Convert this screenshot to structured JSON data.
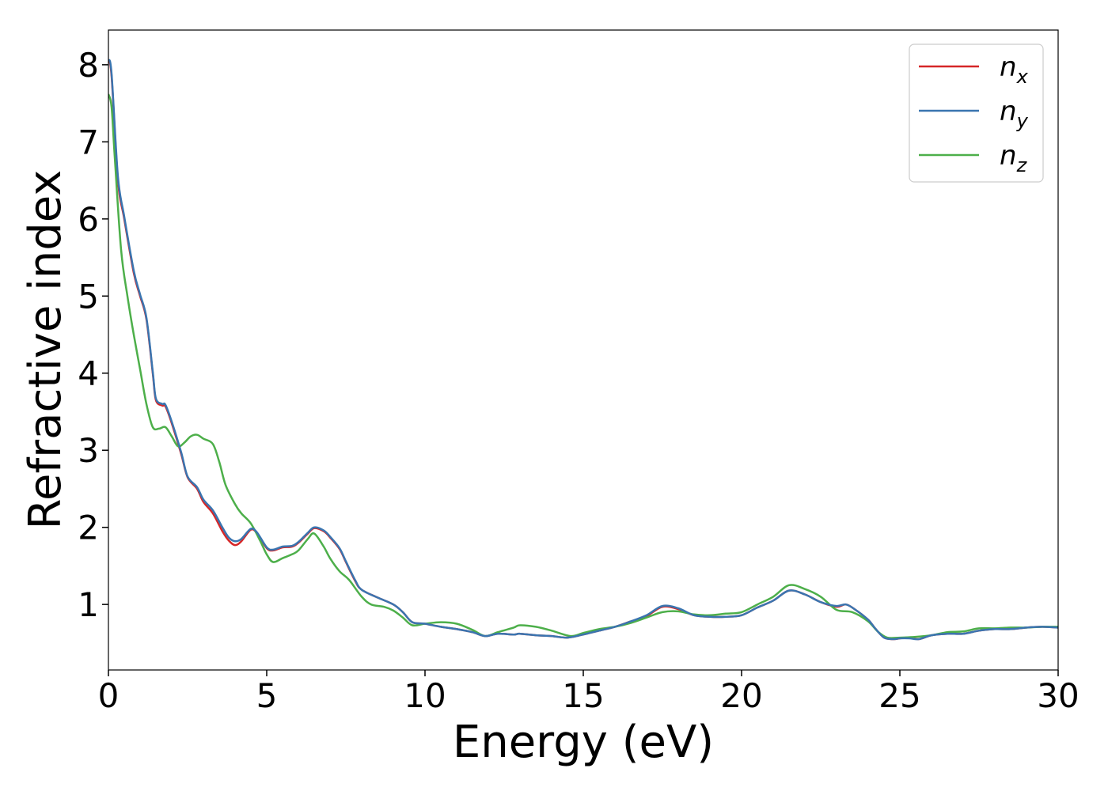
{
  "chart_data": {
    "type": "line",
    "xlabel": "Energy (eV)",
    "ylabel": "Refractive index",
    "xlim": [
      0,
      30
    ],
    "ylim": [
      0.15,
      8.45
    ],
    "x_ticks": [
      0,
      5,
      10,
      15,
      20,
      25,
      30
    ],
    "y_ticks": [
      1,
      2,
      3,
      4,
      5,
      6,
      7,
      8
    ],
    "grid": false,
    "legend_position": "top-right",
    "series": [
      {
        "name": "n",
        "subscript": "x",
        "color": "#d62728",
        "points": [
          [
            0,
            8.05
          ],
          [
            0.1,
            7.85
          ],
          [
            0.3,
            6.5
          ],
          [
            0.5,
            6.0
          ],
          [
            0.8,
            5.3
          ],
          [
            1.0,
            5.0
          ],
          [
            1.2,
            4.7
          ],
          [
            1.4,
            4.0
          ],
          [
            1.5,
            3.65
          ],
          [
            1.7,
            3.58
          ],
          [
            1.8,
            3.57
          ],
          [
            2.0,
            3.35
          ],
          [
            2.3,
            2.95
          ],
          [
            2.5,
            2.65
          ],
          [
            2.8,
            2.5
          ],
          [
            3.0,
            2.33
          ],
          [
            3.3,
            2.18
          ],
          [
            3.6,
            1.95
          ],
          [
            3.8,
            1.83
          ],
          [
            4.0,
            1.77
          ],
          [
            4.2,
            1.82
          ],
          [
            4.5,
            1.97
          ],
          [
            4.7,
            1.92
          ],
          [
            5.0,
            1.73
          ],
          [
            5.2,
            1.7
          ],
          [
            5.5,
            1.74
          ],
          [
            5.8,
            1.75
          ],
          [
            6.0,
            1.8
          ],
          [
            6.3,
            1.92
          ],
          [
            6.5,
            1.99
          ],
          [
            6.8,
            1.95
          ],
          [
            7.0,
            1.87
          ],
          [
            7.3,
            1.72
          ],
          [
            7.5,
            1.55
          ],
          [
            7.8,
            1.3
          ],
          [
            8.0,
            1.19
          ],
          [
            8.5,
            1.09
          ],
          [
            9.0,
            1.0
          ],
          [
            9.3,
            0.9
          ],
          [
            9.6,
            0.77
          ],
          [
            10.0,
            0.75
          ],
          [
            10.5,
            0.71
          ],
          [
            11.0,
            0.68
          ],
          [
            11.5,
            0.64
          ],
          [
            11.9,
            0.59
          ],
          [
            12.3,
            0.62
          ],
          [
            12.8,
            0.61
          ],
          [
            13.0,
            0.62
          ],
          [
            13.5,
            0.6
          ],
          [
            14.0,
            0.59
          ],
          [
            14.5,
            0.57
          ],
          [
            15.0,
            0.61
          ],
          [
            15.5,
            0.66
          ],
          [
            16.0,
            0.71
          ],
          [
            16.5,
            0.78
          ],
          [
            17.0,
            0.85
          ],
          [
            17.5,
            0.97
          ],
          [
            18.0,
            0.94
          ],
          [
            18.5,
            0.86
          ],
          [
            19.0,
            0.84
          ],
          [
            19.5,
            0.84
          ],
          [
            20.0,
            0.86
          ],
          [
            20.5,
            0.96
          ],
          [
            21.0,
            1.05
          ],
          [
            21.5,
            1.18
          ],
          [
            22.0,
            1.13
          ],
          [
            22.5,
            1.03
          ],
          [
            23.0,
            0.97
          ],
          [
            23.3,
            1.0
          ],
          [
            23.6,
            0.93
          ],
          [
            24.0,
            0.8
          ],
          [
            24.2,
            0.7
          ],
          [
            24.5,
            0.57
          ],
          [
            24.8,
            0.55
          ],
          [
            25.0,
            0.56
          ],
          [
            25.3,
            0.57
          ],
          [
            25.6,
            0.55
          ],
          [
            26.0,
            0.6
          ],
          [
            26.5,
            0.62
          ],
          [
            27.0,
            0.62
          ],
          [
            27.5,
            0.66
          ],
          [
            28.0,
            0.68
          ],
          [
            28.5,
            0.68
          ],
          [
            29.0,
            0.7
          ],
          [
            29.5,
            0.71
          ],
          [
            30.0,
            0.7
          ]
        ]
      },
      {
        "name": "n",
        "subscript": "y",
        "color": "#3a75b0",
        "points": [
          [
            0,
            8.07
          ],
          [
            0.1,
            7.88
          ],
          [
            0.3,
            6.55
          ],
          [
            0.5,
            6.03
          ],
          [
            0.8,
            5.33
          ],
          [
            1.0,
            5.02
          ],
          [
            1.2,
            4.72
          ],
          [
            1.4,
            4.02
          ],
          [
            1.5,
            3.67
          ],
          [
            1.7,
            3.6
          ],
          [
            1.8,
            3.59
          ],
          [
            2.0,
            3.37
          ],
          [
            2.3,
            2.97
          ],
          [
            2.5,
            2.66
          ],
          [
            2.8,
            2.52
          ],
          [
            3.0,
            2.36
          ],
          [
            3.3,
            2.22
          ],
          [
            3.6,
            2.0
          ],
          [
            3.8,
            1.87
          ],
          [
            4.0,
            1.82
          ],
          [
            4.2,
            1.85
          ],
          [
            4.5,
            1.98
          ],
          [
            4.7,
            1.93
          ],
          [
            5.0,
            1.74
          ],
          [
            5.2,
            1.71
          ],
          [
            5.5,
            1.75
          ],
          [
            5.8,
            1.76
          ],
          [
            6.0,
            1.81
          ],
          [
            6.3,
            1.93
          ],
          [
            6.5,
            2.0
          ],
          [
            6.8,
            1.96
          ],
          [
            7.0,
            1.88
          ],
          [
            7.3,
            1.73
          ],
          [
            7.5,
            1.56
          ],
          [
            7.8,
            1.31
          ],
          [
            8.0,
            1.19
          ],
          [
            8.5,
            1.09
          ],
          [
            9.0,
            1.0
          ],
          [
            9.3,
            0.9
          ],
          [
            9.6,
            0.77
          ],
          [
            10.0,
            0.75
          ],
          [
            10.5,
            0.71
          ],
          [
            11.0,
            0.68
          ],
          [
            11.5,
            0.64
          ],
          [
            11.9,
            0.59
          ],
          [
            12.3,
            0.62
          ],
          [
            12.8,
            0.61
          ],
          [
            13.0,
            0.62
          ],
          [
            13.5,
            0.6
          ],
          [
            14.0,
            0.59
          ],
          [
            14.5,
            0.57
          ],
          [
            15.0,
            0.61
          ],
          [
            15.5,
            0.66
          ],
          [
            16.0,
            0.71
          ],
          [
            16.5,
            0.78
          ],
          [
            17.0,
            0.86
          ],
          [
            17.5,
            0.98
          ],
          [
            18.0,
            0.95
          ],
          [
            18.5,
            0.86
          ],
          [
            19.0,
            0.84
          ],
          [
            19.5,
            0.84
          ],
          [
            20.0,
            0.86
          ],
          [
            20.5,
            0.96
          ],
          [
            21.0,
            1.05
          ],
          [
            21.5,
            1.18
          ],
          [
            22.0,
            1.13
          ],
          [
            22.5,
            1.03
          ],
          [
            23.0,
            0.98
          ],
          [
            23.3,
            1.0
          ],
          [
            23.6,
            0.93
          ],
          [
            24.0,
            0.8
          ],
          [
            24.2,
            0.7
          ],
          [
            24.5,
            0.57
          ],
          [
            24.8,
            0.55
          ],
          [
            25.0,
            0.56
          ],
          [
            25.3,
            0.56
          ],
          [
            25.6,
            0.55
          ],
          [
            26.0,
            0.6
          ],
          [
            26.5,
            0.62
          ],
          [
            27.0,
            0.62
          ],
          [
            27.5,
            0.66
          ],
          [
            28.0,
            0.68
          ],
          [
            28.5,
            0.68
          ],
          [
            29.0,
            0.7
          ],
          [
            29.5,
            0.71
          ],
          [
            30.0,
            0.7
          ]
        ]
      },
      {
        "name": "n",
        "subscript": "z",
        "color": "#4daf4a",
        "points": [
          [
            0,
            7.62
          ],
          [
            0.1,
            7.45
          ],
          [
            0.2,
            6.8
          ],
          [
            0.4,
            5.6
          ],
          [
            0.6,
            5.0
          ],
          [
            0.8,
            4.5
          ],
          [
            1.0,
            4.05
          ],
          [
            1.2,
            3.6
          ],
          [
            1.4,
            3.3
          ],
          [
            1.6,
            3.28
          ],
          [
            1.8,
            3.3
          ],
          [
            2.0,
            3.18
          ],
          [
            2.2,
            3.05
          ],
          [
            2.4,
            3.1
          ],
          [
            2.6,
            3.18
          ],
          [
            2.8,
            3.2
          ],
          [
            3.0,
            3.15
          ],
          [
            3.3,
            3.08
          ],
          [
            3.5,
            2.85
          ],
          [
            3.7,
            2.55
          ],
          [
            4.0,
            2.3
          ],
          [
            4.2,
            2.18
          ],
          [
            4.5,
            2.05
          ],
          [
            4.8,
            1.82
          ],
          [
            5.0,
            1.65
          ],
          [
            5.2,
            1.55
          ],
          [
            5.5,
            1.6
          ],
          [
            5.8,
            1.65
          ],
          [
            6.0,
            1.7
          ],
          [
            6.3,
            1.85
          ],
          [
            6.5,
            1.92
          ],
          [
            6.8,
            1.75
          ],
          [
            7.0,
            1.6
          ],
          [
            7.3,
            1.43
          ],
          [
            7.6,
            1.32
          ],
          [
            8.0,
            1.1
          ],
          [
            8.3,
            1.0
          ],
          [
            8.7,
            0.97
          ],
          [
            9.0,
            0.92
          ],
          [
            9.3,
            0.83
          ],
          [
            9.6,
            0.73
          ],
          [
            10.0,
            0.75
          ],
          [
            10.5,
            0.77
          ],
          [
            11.0,
            0.75
          ],
          [
            11.5,
            0.67
          ],
          [
            11.9,
            0.59
          ],
          [
            12.3,
            0.64
          ],
          [
            12.8,
            0.7
          ],
          [
            13.0,
            0.73
          ],
          [
            13.5,
            0.71
          ],
          [
            14.0,
            0.66
          ],
          [
            14.6,
            0.59
          ],
          [
            15.0,
            0.63
          ],
          [
            15.5,
            0.68
          ],
          [
            16.0,
            0.71
          ],
          [
            16.5,
            0.76
          ],
          [
            17.0,
            0.83
          ],
          [
            17.5,
            0.9
          ],
          [
            18.0,
            0.91
          ],
          [
            18.5,
            0.87
          ],
          [
            19.0,
            0.86
          ],
          [
            19.5,
            0.88
          ],
          [
            20.0,
            0.9
          ],
          [
            20.5,
            1.0
          ],
          [
            21.0,
            1.1
          ],
          [
            21.5,
            1.25
          ],
          [
            22.0,
            1.2
          ],
          [
            22.5,
            1.1
          ],
          [
            23.0,
            0.93
          ],
          [
            23.5,
            0.9
          ],
          [
            24.0,
            0.78
          ],
          [
            24.3,
            0.65
          ],
          [
            24.6,
            0.57
          ],
          [
            25.0,
            0.57
          ],
          [
            25.5,
            0.58
          ],
          [
            26.0,
            0.6
          ],
          [
            26.5,
            0.64
          ],
          [
            27.0,
            0.65
          ],
          [
            27.5,
            0.69
          ],
          [
            28.0,
            0.69
          ],
          [
            28.5,
            0.7
          ],
          [
            29.0,
            0.7
          ],
          [
            29.5,
            0.71
          ],
          [
            30.0,
            0.71
          ]
        ]
      }
    ]
  }
}
